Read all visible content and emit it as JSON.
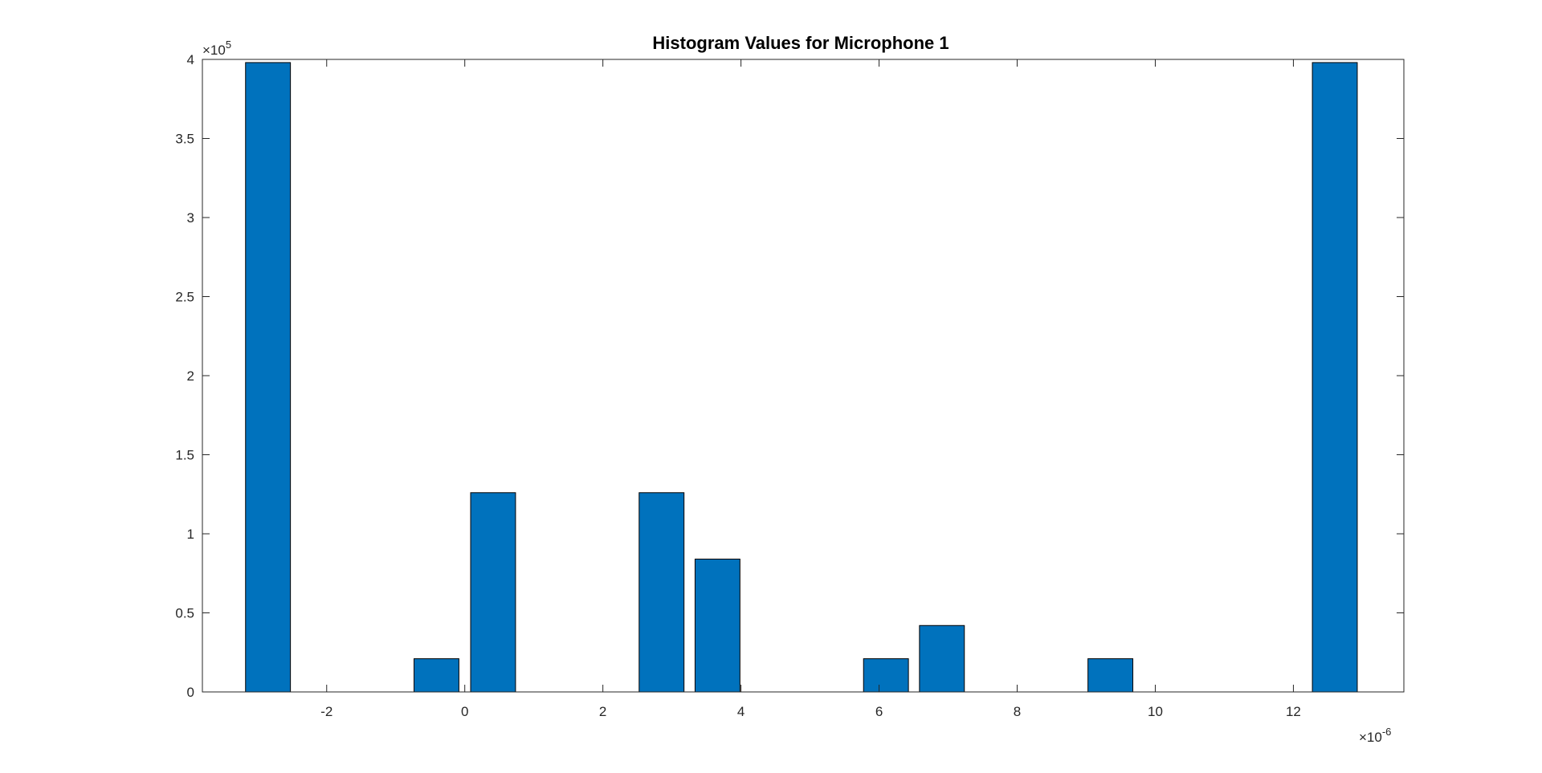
{
  "chart_data": {
    "type": "bar",
    "title": "Histogram Values for Microphone 1",
    "xlabel": "",
    "ylabel": "",
    "x_exponent_label": "×10",
    "x_exponent_power": "-6",
    "y_exponent_label": "×10",
    "y_exponent_power": "5",
    "xlim": [
      -3.8,
      13.6
    ],
    "ylim": [
      0,
      4
    ],
    "x_unit_scale": 1e-06,
    "y_unit_scale": 100000,
    "x_ticks": [
      {
        "value": -2,
        "label": "-2"
      },
      {
        "value": 0,
        "label": "0"
      },
      {
        "value": 2,
        "label": "2"
      },
      {
        "value": 4,
        "label": "4"
      },
      {
        "value": 6,
        "label": "6"
      },
      {
        "value": 8,
        "label": "8"
      },
      {
        "value": 10,
        "label": "10"
      },
      {
        "value": 12,
        "label": "12"
      }
    ],
    "y_ticks": [
      {
        "value": 0,
        "label": "0"
      },
      {
        "value": 0.5,
        "label": "0.5"
      },
      {
        "value": 1,
        "label": "1"
      },
      {
        "value": 1.5,
        "label": "1.5"
      },
      {
        "value": 2,
        "label": "2"
      },
      {
        "value": 2.5,
        "label": "2.5"
      },
      {
        "value": 3,
        "label": "3"
      },
      {
        "value": 3.5,
        "label": "3.5"
      },
      {
        "value": 4,
        "label": "4"
      }
    ],
    "bin_width": 0.8125,
    "bins": [
      {
        "x": -2.85,
        "value": 3.98
      },
      {
        "x": -2.04,
        "value": 0
      },
      {
        "x": -1.22,
        "value": 0
      },
      {
        "x": -0.41,
        "value": 0.21
      },
      {
        "x": 0.41,
        "value": 1.26
      },
      {
        "x": 1.22,
        "value": 0
      },
      {
        "x": 2.04,
        "value": 0
      },
      {
        "x": 2.85,
        "value": 1.26
      },
      {
        "x": 3.66,
        "value": 0.84
      },
      {
        "x": 4.48,
        "value": 0
      },
      {
        "x": 5.29,
        "value": 0
      },
      {
        "x": 6.1,
        "value": 0.21
      },
      {
        "x": 6.91,
        "value": 0.42
      },
      {
        "x": 7.73,
        "value": 0
      },
      {
        "x": 8.54,
        "value": 0
      },
      {
        "x": 9.35,
        "value": 0.21
      },
      {
        "x": 10.16,
        "value": 0
      },
      {
        "x": 10.98,
        "value": 0
      },
      {
        "x": 11.79,
        "value": 0
      },
      {
        "x": 12.6,
        "value": 3.98
      }
    ],
    "bar_color": "#0072BD",
    "bar_edge_color": "#000000",
    "grid": false,
    "box": true
  }
}
